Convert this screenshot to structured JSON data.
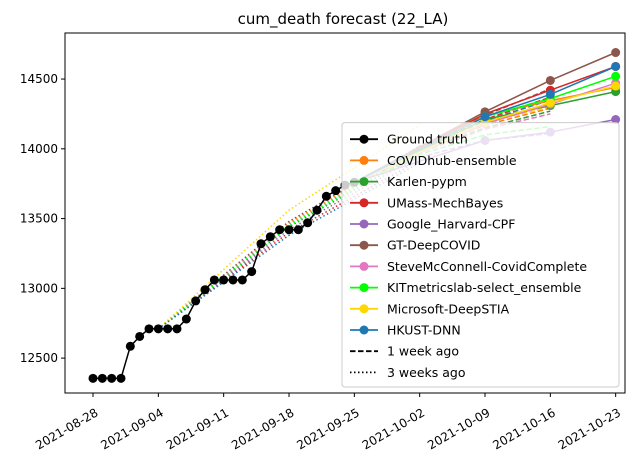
{
  "chart_data": {
    "type": "line",
    "title": "cum_death forecast (22_LA)",
    "xlabel": "",
    "ylabel": "",
    "xlim": [
      "2021-08-25",
      "2021-10-24"
    ],
    "ylim": [
      12250,
      14830
    ],
    "x_ticks": [
      "2021-08-28",
      "2021-09-04",
      "2021-09-11",
      "2021-09-18",
      "2021-09-25",
      "2021-10-02",
      "2021-10-09",
      "2021-10-16",
      "2021-10-23"
    ],
    "y_ticks": [
      12500,
      13000,
      13500,
      14000,
      14500
    ],
    "grid": false,
    "legend_position": "lower-right",
    "ground_truth": {
      "name": "Ground truth",
      "color": "#000000",
      "x": [
        "2021-08-28",
        "2021-08-29",
        "2021-08-30",
        "2021-08-31",
        "2021-09-01",
        "2021-09-02",
        "2021-09-03",
        "2021-09-04",
        "2021-09-05",
        "2021-09-06",
        "2021-09-07",
        "2021-09-08",
        "2021-09-09",
        "2021-09-10",
        "2021-09-11",
        "2021-09-12",
        "2021-09-13",
        "2021-09-14",
        "2021-09-15",
        "2021-09-16",
        "2021-09-17",
        "2021-09-18",
        "2021-09-19",
        "2021-09-20",
        "2021-09-21",
        "2021-09-22",
        "2021-09-23",
        "2021-09-24",
        "2021-09-25"
      ],
      "y": [
        12355,
        12355,
        12355,
        12355,
        12585,
        12655,
        12710,
        12710,
        12710,
        12710,
        12780,
        12910,
        12990,
        13060,
        13060,
        13060,
        13060,
        13120,
        13320,
        13370,
        13420,
        13420,
        13420,
        13470,
        13560,
        13660,
        13700,
        13740,
        13760
      ]
    },
    "series": [
      {
        "name": "COVIDhub-ensemble",
        "color": "#ff7f0e",
        "x": [
          "2021-10-09",
          "2021-10-16",
          "2021-10-23"
        ],
        "y": [
          14235,
          14345,
          14440
        ],
        "week1": {
          "x": [
            "2021-09-28",
            "2021-10-02",
            "2021-10-09",
            "2021-10-16"
          ],
          "y": [
            13830,
            13990,
            14170,
            14290
          ]
        },
        "week3": {
          "x": [
            "2021-09-04",
            "2021-09-18",
            "2021-10-02"
          ],
          "y": [
            12710,
            13470,
            14010
          ]
        }
      },
      {
        "name": "Karlen-pypm",
        "color": "#2ca02c",
        "x": [
          "2021-10-09",
          "2021-10-16",
          "2021-10-23"
        ],
        "y": [
          14210,
          14310,
          14410
        ],
        "week1": {
          "x": [
            "2021-09-28",
            "2021-10-02",
            "2021-10-09",
            "2021-10-16"
          ],
          "y": [
            13830,
            13980,
            14150,
            14270
          ]
        },
        "week3": {
          "x": [
            "2021-09-04",
            "2021-09-18",
            "2021-10-02"
          ],
          "y": [
            12710,
            13440,
            13970
          ]
        }
      },
      {
        "name": "UMass-MechBayes",
        "color": "#d62728",
        "x": [
          "2021-10-09",
          "2021-10-16",
          "2021-10-23"
        ],
        "y": [
          14250,
          14420,
          14590
        ],
        "week1": {
          "x": [
            "2021-09-28",
            "2021-10-02",
            "2021-10-09",
            "2021-10-16"
          ],
          "y": [
            13840,
            14000,
            14210,
            14370
          ]
        },
        "week3": {
          "x": [
            "2021-09-04",
            "2021-09-18",
            "2021-10-02"
          ],
          "y": [
            12710,
            13400,
            13920
          ]
        }
      },
      {
        "name": "Google_Harvard-CPF",
        "color": "#9467bd",
        "x": [
          "2021-10-09",
          "2021-10-16",
          "2021-10-23"
        ],
        "y": [
          14060,
          14120,
          14210
        ],
        "week1": {
          "x": [
            "2021-09-28",
            "2021-10-02",
            "2021-10-09",
            "2021-10-16"
          ],
          "y": [
            13820,
            13940,
            14060,
            14110
          ]
        },
        "week3": {
          "x": [
            "2021-09-04",
            "2021-09-18",
            "2021-10-02"
          ],
          "y": [
            12710,
            13420,
            13950
          ]
        }
      },
      {
        "name": "GT-DeepCOVID",
        "color": "#8c564b",
        "x": [
          "2021-10-09",
          "2021-10-16",
          "2021-10-23"
        ],
        "y": [
          14265,
          14490,
          14690
        ],
        "week1": {
          "x": [
            "2021-09-28",
            "2021-10-02",
            "2021-10-09",
            "2021-10-16"
          ],
          "y": [
            13850,
            14020,
            14240,
            14430
          ]
        },
        "week3": {
          "x": [
            "2021-09-04",
            "2021-09-18",
            "2021-10-02"
          ],
          "y": [
            12710,
            13480,
            14020
          ]
        }
      },
      {
        "name": "SteveMcConnell-CovidComplete",
        "color": "#e377c2",
        "x": [
          "2021-10-09",
          "2021-10-16",
          "2021-10-23"
        ],
        "y": [
          14180,
          14320,
          14470
        ],
        "week1": {
          "x": [
            "2021-09-28",
            "2021-10-02",
            "2021-10-09",
            "2021-10-16"
          ],
          "y": [
            13820,
            13970,
            14140,
            14250
          ]
        },
        "week3": {
          "x": [
            "2021-09-04",
            "2021-09-18",
            "2021-10-02"
          ],
          "y": [
            12710,
            13460,
            14000
          ]
        }
      },
      {
        "name": "KITmetricslab-select_ensemble",
        "color": "#00ff00",
        "x": [
          "2021-10-09",
          "2021-10-16",
          "2021-10-23"
        ],
        "y": [
          14230,
          14360,
          14520
        ],
        "week1": {
          "x": [
            "2021-09-28",
            "2021-10-02",
            "2021-10-09",
            "2021-10-16"
          ],
          "y": [
            13820,
            13960,
            14100,
            14160
          ]
        },
        "week3": {
          "x": [
            "2021-09-04",
            "2021-09-18",
            "2021-10-02"
          ],
          "y": [
            12710,
            13450,
            13990
          ]
        }
      },
      {
        "name": "Microsoft-DeepSTIA",
        "color": "#ffd700",
        "x": [
          "2021-10-09",
          "2021-10-16",
          "2021-10-23"
        ],
        "y": [
          14190,
          14330,
          14450
        ],
        "week1": {
          "x": [
            "2021-09-28",
            "2021-10-02",
            "2021-10-09",
            "2021-10-16"
          ],
          "y": [
            13830,
            13990,
            14190,
            14300
          ]
        },
        "week3": {
          "x": [
            "2021-09-04",
            "2021-09-18",
            "2021-10-02"
          ],
          "y": [
            12710,
            13560,
            14170
          ]
        }
      },
      {
        "name": "HKUST-DNN",
        "color": "#1f77b4",
        "x": [
          "2021-10-09",
          "2021-10-16",
          "2021-10-23"
        ],
        "y": [
          14230,
          14390,
          14590
        ],
        "week1": {
          "x": [
            "2021-09-28",
            "2021-10-02",
            "2021-10-09",
            "2021-10-16"
          ],
          "y": [
            13840,
            14000,
            14200,
            14350
          ]
        },
        "week3": {
          "x": [
            "2021-09-04",
            "2021-09-18",
            "2021-10-02"
          ],
          "y": [
            12710,
            13380,
            13900
          ]
        }
      }
    ],
    "legend_extra": [
      {
        "name": "1 week ago",
        "style": "dashed"
      },
      {
        "name": "3 weeks ago",
        "style": "dotted"
      }
    ]
  }
}
